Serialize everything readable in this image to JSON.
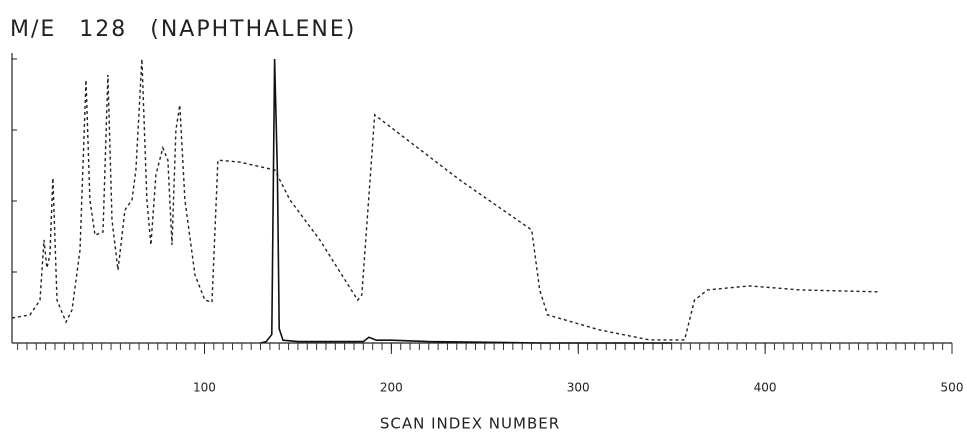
{
  "chart_data": {
    "type": "line",
    "title": "M/E 128 (NAPHTHALENE)",
    "x_label": "SCAN INDEX NUMBER",
    "xlim": [
      -3,
      500
    ],
    "xticks": [
      100,
      200,
      300,
      400,
      500
    ],
    "ylim": [
      0,
      100
    ],
    "yticks": [
      0,
      25,
      50,
      75,
      100
    ],
    "grid": false,
    "series": [
      {
        "color": "#222222",
        "style": "dashed",
        "x": [
          -3,
          6.6,
          12,
          14.1,
          15.7,
          17.3,
          18.9,
          21.1,
          25.9,
          29.1,
          33.4,
          36.6,
          38.7,
          41.4,
          45.7,
          48.3,
          50.5,
          53.7,
          57.4,
          61.2,
          63.3,
          66.5,
          69.2,
          71.3,
          74,
          77.7,
          80.4,
          82.6,
          84.7,
          86.8,
          89.5,
          94.9,
          100.2,
          104,
          107.2,
          118.9,
          137.6,
          145.7,
          161.7,
          182,
          184.2,
          191.1,
          236.6,
          275.1,
          279.4,
          283.6,
          311.4,
          338.2,
          356.9,
          362.2,
          369.2,
          391.7,
          418.4,
          461.2
        ],
        "values": [
          8.8,
          9.9,
          15.1,
          36.3,
          26.4,
          31,
          58.1,
          15.1,
          7.4,
          11.6,
          32.7,
          92.6,
          50.4,
          38,
          39.1,
          94.4,
          43.3,
          25.7,
          46.8,
          50.4,
          60.9,
          100,
          50.4,
          34.5,
          59.2,
          68.7,
          64.4,
          34.5,
          75,
          83.8,
          50.4,
          23.9,
          15.1,
          14.4,
          64.4,
          63.7,
          60.9,
          50.4,
          36.3,
          15.1,
          16.9,
          80.3,
          57.4,
          39.8,
          18.7,
          9.9,
          4.6,
          1.1,
          1.1,
          15.1,
          18.7,
          20.1,
          18.7,
          18
        ]
      },
      {
        "color": "#111111",
        "style": "solid",
        "x": [
          130,
          133,
          136,
          137.5,
          139,
          140,
          142,
          150,
          185,
          188,
          192,
          200,
          220,
          280,
          350
        ],
        "values": [
          0,
          0.5,
          3,
          100,
          60,
          5,
          1,
          0.5,
          0.5,
          2,
          1,
          1,
          0.5,
          0,
          0
        ]
      }
    ]
  }
}
